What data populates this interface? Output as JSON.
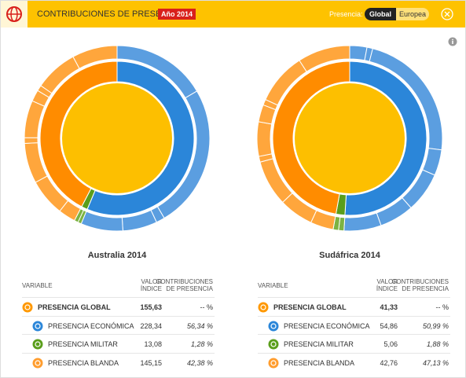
{
  "header": {
    "title": "CONTRIBUCIONES DE PRESENCIA",
    "year": "Año 2014",
    "toggle_label": "Presencia:",
    "toggle_options": [
      "Global",
      "Europea"
    ]
  },
  "table_headers": {
    "variable": "VARIABLE",
    "value": "VALOR ÍNDICE",
    "contribution": "CONTRIBUCIONES DE PRESENCIA"
  },
  "panels": [
    {
      "title": "Australia 2014",
      "global": {
        "label": "PRESENCIA GLOBAL",
        "index": "155,63",
        "contribution": "-- %"
      },
      "components": [
        {
          "label": "PRESENCIA ECONÓMICA",
          "index": "228,34"
        },
        {
          "label": "PRESENCIA MILITAR",
          "index": "13,08"
        },
        {
          "label": "PRESENCIA BLANDA",
          "index": "145,15"
        }
      ],
      "contributions": {
        "values": [
          56.34,
          1.28,
          42.38
        ],
        "value_labels": [
          "56,34 %",
          "1,28 %",
          "42,38 %"
        ]
      },
      "outer": [
        [
          16.5,
          25,
          1.5,
          6,
          7.34
        ],
        [
          0.6,
          0.68
        ],
        [
          3,
          6.5,
          7,
          1,
          6.5,
          2,
          1,
          7.5,
          7.88
        ]
      ]
    },
    {
      "title": "Sudáfrica 2014",
      "global": {
        "label": "PRESENCIA GLOBAL",
        "index": "41,33",
        "contribution": "-- %"
      },
      "components": [
        {
          "label": "PRESENCIA ECONÓMICA",
          "index": "54,86"
        },
        {
          "label": "PRESENCIA MILITAR",
          "index": "5,06"
        },
        {
          "label": "PRESENCIA BLANDA",
          "index": "42,76"
        }
      ],
      "contributions": {
        "values": [
          50.99,
          1.88,
          47.13
        ],
        "value_labels": [
          "50,99 %",
          "1,88 %",
          "47,13 %"
        ]
      },
      "outer": [
        [
          3,
          1,
          23,
          4.5,
          7,
          6,
          6.49
        ],
        [
          0.94,
          0.94
        ],
        [
          4,
          6,
          8,
          1,
          6,
          3,
          1,
          9,
          9.13
        ]
      ]
    }
  ]
}
